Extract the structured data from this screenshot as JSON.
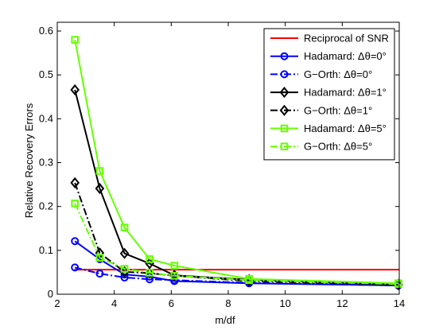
{
  "chart_data": {
    "type": "line",
    "title": "",
    "xlabel": "m/df",
    "ylabel": "Relative Recovery Errors",
    "xlim": [
      2,
      14
    ],
    "ylim": [
      0,
      0.62
    ],
    "xticks": [
      2,
      4,
      6,
      8,
      10,
      12,
      14
    ],
    "xtick_labels": [
      "2",
      "4",
      "6",
      "8",
      "10",
      "12",
      "14"
    ],
    "yticks": [
      0,
      0.1,
      0.2,
      0.3,
      0.4,
      0.5,
      0.6
    ],
    "ytick_labels": [
      "0",
      "0.1",
      "0.2",
      "0.3",
      "0.4",
      "0.5",
      "0.6"
    ],
    "grid": false,
    "legend_position": "top-right",
    "series": [
      {
        "name": "Reciprocal of SNR",
        "color": "#ff0000",
        "dash": "solid",
        "marker": "none",
        "x": [
          2.6,
          14
        ],
        "y": [
          0.056,
          0.056
        ]
      },
      {
        "name": "Hadamard: Δθ=0°",
        "color": "#0000ff",
        "dash": "solid",
        "marker": "circle",
        "x": [
          2.62,
          3.49,
          4.36,
          5.24,
          6.11,
          8.73,
          13.97
        ],
        "y": [
          0.121,
          0.08,
          0.045,
          0.04,
          0.03,
          0.025,
          0.02
        ]
      },
      {
        "name": "G−Orth: Δθ=0°",
        "color": "#0000ff",
        "dash": "dashdot",
        "marker": "circle",
        "x": [
          2.62,
          3.49,
          4.36,
          5.24,
          6.11,
          8.73,
          13.97
        ],
        "y": [
          0.061,
          0.047,
          0.038,
          0.034,
          0.032,
          0.026,
          0.02
        ]
      },
      {
        "name": "Hadamard: Δθ=1°",
        "color": "#000000",
        "dash": "solid",
        "marker": "diamond",
        "x": [
          2.62,
          3.49,
          4.36,
          5.24,
          6.11,
          8.73,
          13.97
        ],
        "y": [
          0.466,
          0.241,
          0.093,
          0.07,
          0.043,
          0.033,
          0.022
        ]
      },
      {
        "name": "G−Orth: Δθ=1°",
        "color": "#000000",
        "dash": "dashdot",
        "marker": "diamond",
        "x": [
          2.62,
          3.49,
          4.36,
          5.24,
          6.11,
          8.73,
          13.97
        ],
        "y": [
          0.254,
          0.094,
          0.051,
          0.048,
          0.042,
          0.03,
          0.022
        ]
      },
      {
        "name": "Hadamard: Δθ=5°",
        "color": "#66ff00",
        "dash": "solid",
        "marker": "square",
        "x": [
          2.62,
          3.49,
          4.36,
          5.24,
          6.11,
          8.73,
          13.97
        ],
        "y": [
          0.58,
          0.281,
          0.152,
          0.08,
          0.065,
          0.035,
          0.025
        ]
      },
      {
        "name": "G−Orth: Δθ=5°",
        "color": "#66ff00",
        "dash": "dashdot",
        "marker": "square",
        "x": [
          2.62,
          3.49,
          4.36,
          5.24,
          6.11,
          8.73,
          13.97
        ],
        "y": [
          0.207,
          0.083,
          0.058,
          0.049,
          0.042,
          0.032,
          0.023
        ]
      }
    ]
  }
}
